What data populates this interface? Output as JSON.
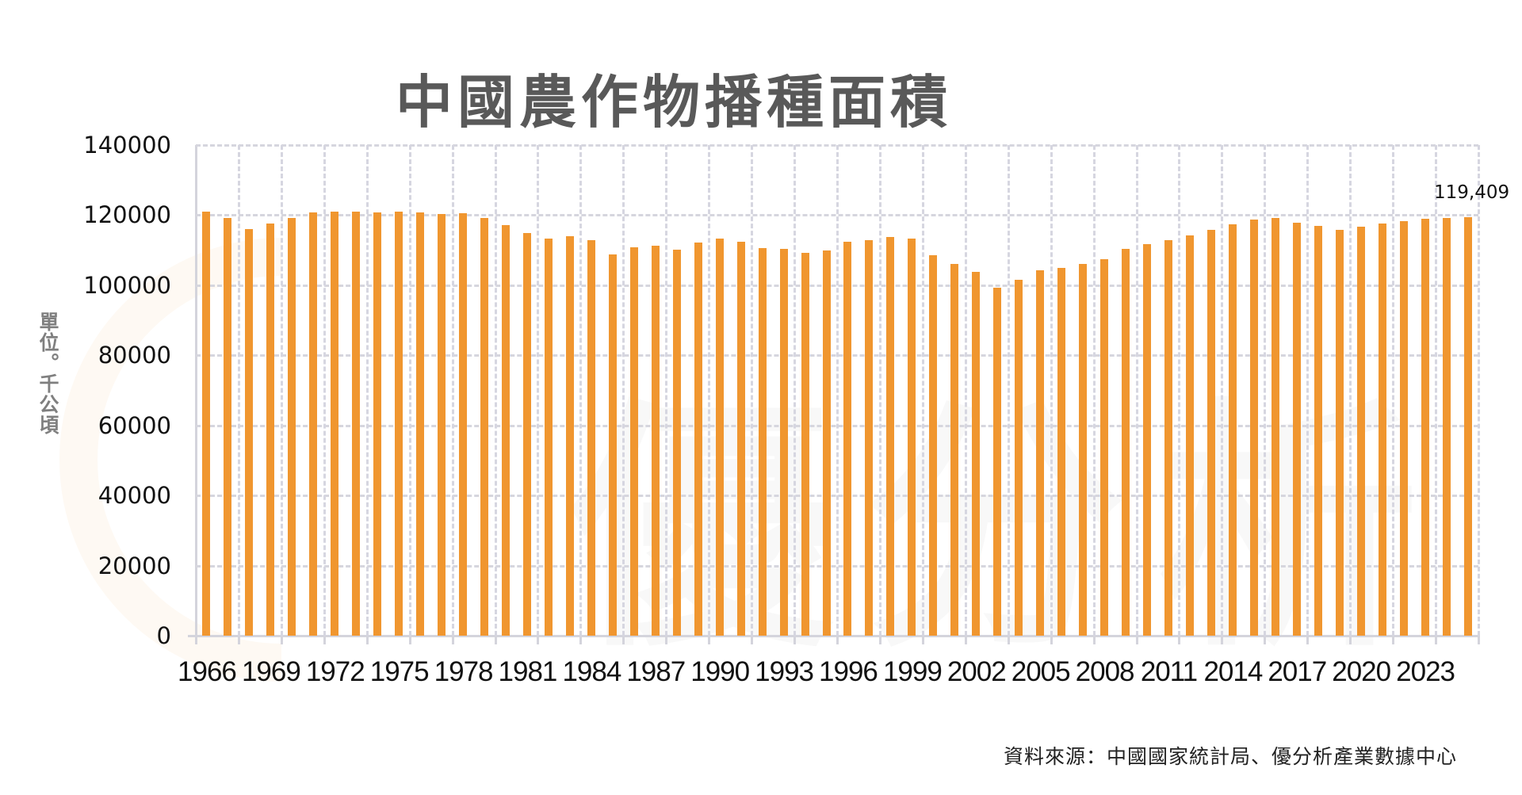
{
  "chart": {
    "title": "中國農作物播種面積",
    "y_unit_label": "單位。千公頃",
    "last_value_label": "119,409",
    "source": "資料來源：中國國家統計局、優分析產業數據中心",
    "bar_color": "#F0962F",
    "title_color": "#595959",
    "y_ticks": [
      "0",
      "20000",
      "40000",
      "60000",
      "80000",
      "100000",
      "120000",
      "140000"
    ],
    "x_tick_labels": [
      "1966",
      "1969",
      "1972",
      "1975",
      "1978",
      "1981",
      "1984",
      "1987",
      "1990",
      "1993",
      "1996",
      "1999",
      "2002",
      "2005",
      "2008",
      "2011",
      "2014",
      "2017",
      "2020",
      "2023"
    ]
  },
  "chart_data": {
    "type": "bar",
    "title": "中國農作物播種面積",
    "xlabel": "",
    "ylabel": "單位。千公頃",
    "ylim": [
      0,
      140000
    ],
    "yticks": [
      0,
      20000,
      40000,
      60000,
      80000,
      100000,
      120000,
      140000
    ],
    "grid": true,
    "legend": null,
    "annotations": [
      {
        "x": "2025",
        "text": "119,409"
      }
    ],
    "source": "資料來源：中國國家統計局、優分析產業數據中心",
    "categories": [
      "1966",
      "1967",
      "1968",
      "1969",
      "1970",
      "1971",
      "1972",
      "1973",
      "1974",
      "1975",
      "1976",
      "1977",
      "1978",
      "1979",
      "1980",
      "1981",
      "1982",
      "1983",
      "1984",
      "1985",
      "1986",
      "1987",
      "1988",
      "1989",
      "1990",
      "1991",
      "1992",
      "1993",
      "1994",
      "1995",
      "1996",
      "1997",
      "1998",
      "1999",
      "2000",
      "2001",
      "2002",
      "2003",
      "2004",
      "2005",
      "2006",
      "2007",
      "2008",
      "2009",
      "2010",
      "2011",
      "2012",
      "2013",
      "2014",
      "2015",
      "2016",
      "2017",
      "2018",
      "2019",
      "2020",
      "2021",
      "2022",
      "2023",
      "2024",
      "2025"
    ],
    "values": [
      121000,
      119200,
      116000,
      117500,
      119200,
      120700,
      121000,
      121100,
      120800,
      120900,
      120700,
      120300,
      120500,
      119200,
      117200,
      114900,
      113400,
      113900,
      112850,
      108700,
      110900,
      111200,
      110100,
      112100,
      113300,
      112300,
      110500,
      110300,
      109300,
      109900,
      112500,
      112900,
      113700,
      113200,
      108500,
      106000,
      103900,
      99400,
      101600,
      104300,
      105000,
      106000,
      107500,
      110300,
      111700,
      112800,
      114200,
      115900,
      117300,
      118800,
      119200,
      117900,
      116900,
      115900,
      116700,
      117500,
      118200,
      118900,
      119200,
      119409
    ]
  }
}
